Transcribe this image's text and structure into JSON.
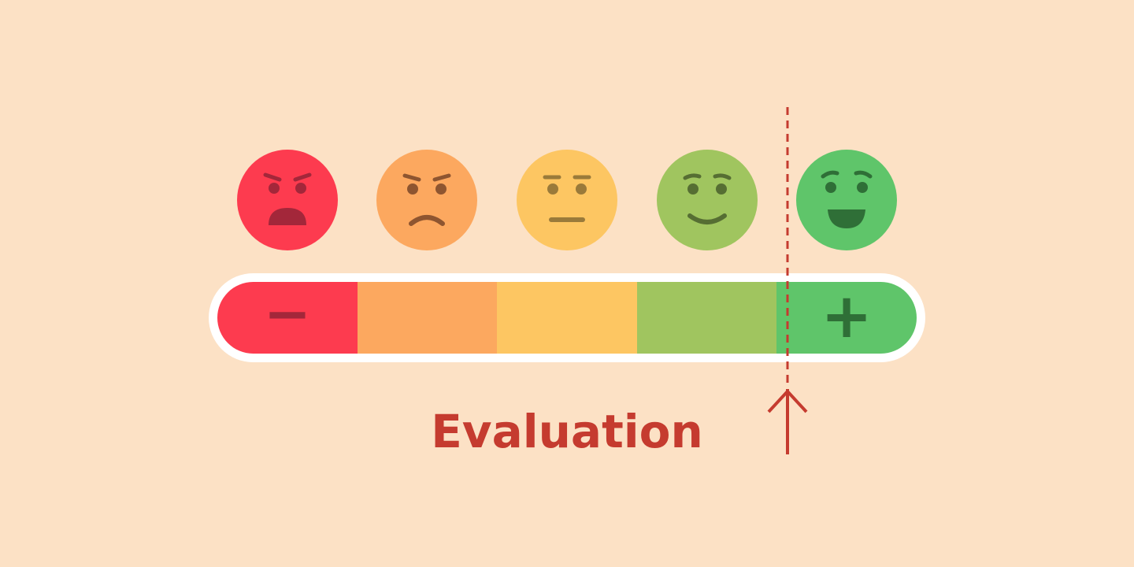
{
  "label": "Evaluation",
  "scale": {
    "levels": 5,
    "selected_level": 5,
    "marker_position_fraction": 0.81,
    "minus_symbol": "−",
    "plus_symbol": "+",
    "colors": [
      "#fd3b4f",
      "#fca85f",
      "#fdc662",
      "#a0c55f",
      "#5fc56a"
    ],
    "frame_color": "#ffffff",
    "minus_symbol_color": "#a3273a",
    "plus_symbol_color": "#2f6f37",
    "marker_color": "#c53b2f"
  },
  "faces": [
    {
      "mood": "angry",
      "icon": "angry-face-icon",
      "color": "#fd3b4f",
      "feature_color": "#a3273a"
    },
    {
      "mood": "annoyed",
      "icon": "annoyed-face-icon",
      "color": "#fca85f",
      "feature_color": "#8e5530"
    },
    {
      "mood": "neutral",
      "icon": "neutral-face-icon",
      "color": "#fdc662",
      "feature_color": "#9a7a3a"
    },
    {
      "mood": "content",
      "icon": "smiling-face-icon",
      "color": "#a0c55f",
      "feature_color": "#566e33"
    },
    {
      "mood": "happy",
      "icon": "happy-face-icon",
      "color": "#5fc56a",
      "feature_color": "#2f6f37"
    }
  ]
}
